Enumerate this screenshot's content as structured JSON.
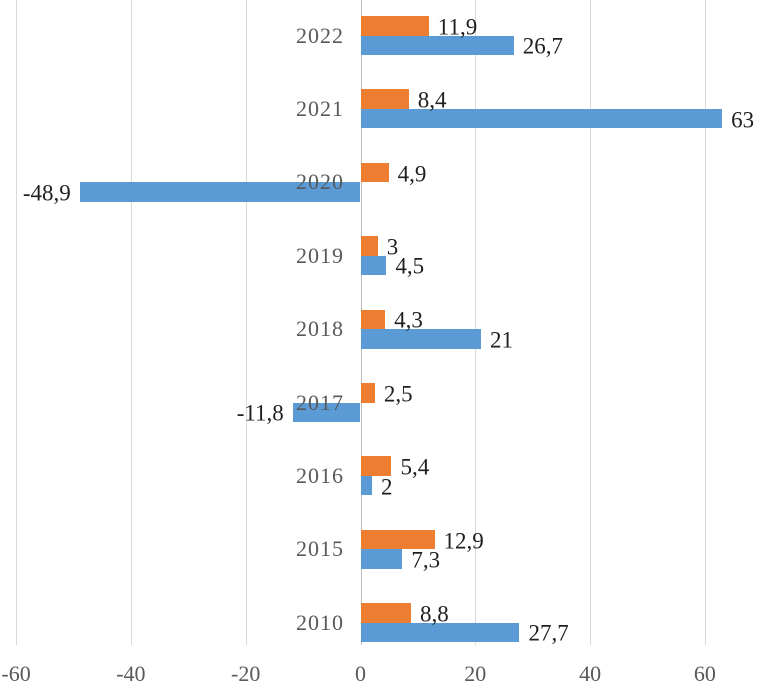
{
  "chart_data": {
    "type": "bar",
    "orientation": "horizontal",
    "categories": [
      "2022",
      "2021",
      "2020",
      "2019",
      "2018",
      "2017",
      "2016",
      "2015",
      "2010"
    ],
    "series": [
      {
        "name": "orange",
        "color": "#ED7D31",
        "values": [
          11.9,
          8.4,
          4.9,
          3,
          4.3,
          2.5,
          5.4,
          12.9,
          8.8
        ],
        "labels": [
          "11,9",
          "8,4",
          "4,9",
          "3",
          "4,3",
          "2,5",
          "5,4",
          "12,9",
          "8,8"
        ]
      },
      {
        "name": "blue",
        "color": "#5B9BD5",
        "values": [
          26.7,
          63,
          -48.9,
          4.5,
          21,
          -11.8,
          2,
          7.3,
          27.7
        ],
        "labels": [
          "26,7",
          "63",
          "-48,9",
          "4,5",
          "21",
          "-11,8",
          "2",
          "7,3",
          "27,7"
        ]
      }
    ],
    "xticks": [
      -60,
      -40,
      -20,
      0,
      20,
      40,
      60
    ],
    "xtick_labels": [
      "-60",
      "-40",
      "-20",
      "0",
      "20",
      "40",
      "60"
    ],
    "xlim": [
      -62,
      70
    ],
    "grid": true,
    "legend": false,
    "decimal_separator": ",",
    "colors": {
      "orange_series": "#ED7D31",
      "blue_series": "#5B9BD5",
      "gridline": "#D9D9D9",
      "zero_axis": "#BFBFBF",
      "category_text": "#595959",
      "tick_text": "#595959",
      "data_label_text": "#1F1F1F",
      "background": "#FFFFFF"
    }
  }
}
